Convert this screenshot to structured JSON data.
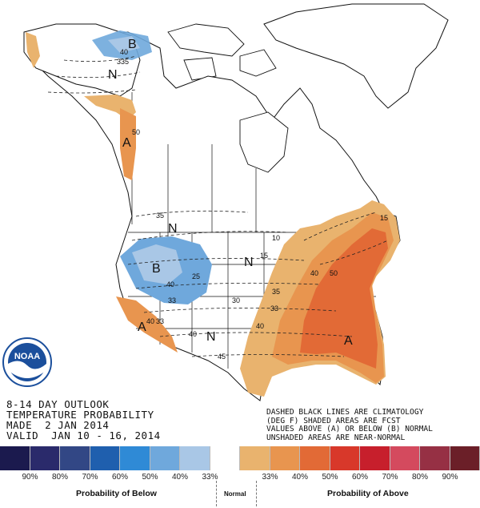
{
  "title_lines": [
    "8-14 DAY OUTLOOK",
    "TEMPERATURE PROBABILITY",
    "MADE  2 JAN 2014",
    "VALID  JAN 10 - 16, 2014"
  ],
  "notes": [
    "DASHED BLACK LINES ARE CLIMATOLOGY",
    "(DEG F) SHADED AREAS ARE FCST",
    "VALUES ABOVE (A) OR BELOW (B) NORMAL",
    "UNSHADED AREAS ARE NEAR-NORMAL"
  ],
  "logo_text": "NOAA",
  "legend": {
    "colors": [
      "#1b1a4e",
      "#2a2a6b",
      "#324785",
      "#1f5fae",
      "#2f8ad6",
      "#6fa8dc",
      "#a9c7e6",
      "#ffffff",
      "#e9b36e",
      "#e8954f",
      "#e26a36",
      "#d8382a",
      "#c71f2c",
      "#d44a5e",
      "#963044",
      "#6b1f28"
    ],
    "ticks": [
      "90%",
      "80%",
      "70%",
      "60%",
      "50%",
      "40%",
      "33%",
      "33%",
      "40%",
      "50%",
      "60%",
      "70%",
      "80%",
      "90%"
    ],
    "below_label": "Probability of Below",
    "normal_label": "Normal",
    "above_label": "Probability of Above"
  },
  "map_labels": {
    "region_letters": [
      "B",
      "N",
      "A",
      "N",
      "B",
      "N",
      "A",
      "N",
      "A"
    ],
    "contours": [
      "40",
      "335",
      "50",
      "35",
      "10",
      "15",
      "25",
      "40",
      "50",
      "40",
      "33",
      "30",
      "35",
      "40",
      "33",
      "40",
      "33",
      "40",
      "45",
      "15"
    ]
  }
}
